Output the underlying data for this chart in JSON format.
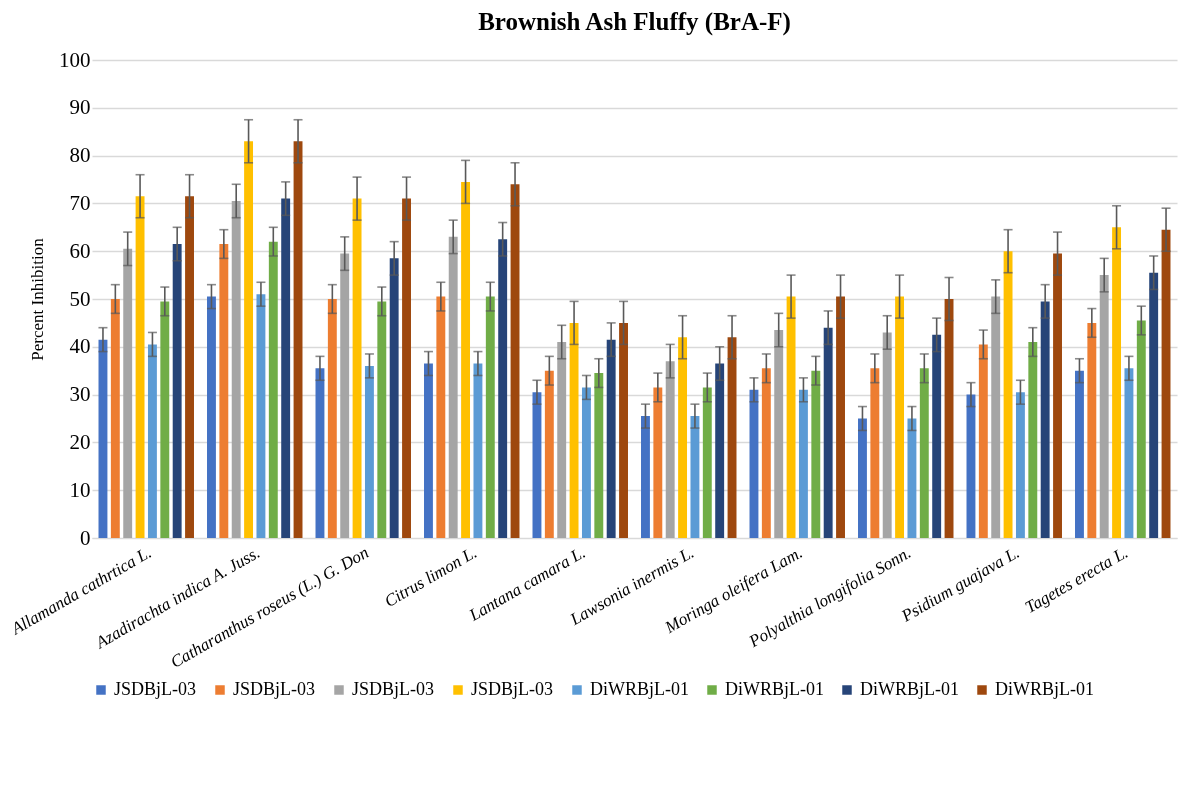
{
  "chart_data": {
    "type": "bar",
    "title": "Brownish Ash Fluffy (BrA-F)",
    "ylabel": "Percent Inhibition",
    "categories": [
      "Allamanda cathrtica L.",
      "Azadirachta indica A. Juss.",
      "Catharanthus roseus (L.) G. Don",
      "Citrus limon L.",
      "Lantana camara L.",
      "Lawsonia inermis L.",
      "Moringa oleifera Lam.",
      "Polyalthia longifolia Sonn.",
      "Psidium guajava L.",
      "Tagetes erecta L."
    ],
    "ylim": [
      0,
      100
    ],
    "yticks": [
      0,
      10,
      20,
      30,
      40,
      50,
      60,
      70,
      80,
      90,
      100
    ],
    "grid": "y",
    "legend": "bottom",
    "series": [
      {
        "name": "JSDBjL-03",
        "color": "#4472c4",
        "values": [
          41.5,
          50.5,
          35.5,
          36.5,
          30.5,
          25.5,
          31,
          25,
          30,
          35
        ],
        "errors": [
          2.5,
          2.5,
          2.5,
          2.5,
          2.5,
          2.5,
          2.5,
          2.5,
          2.5,
          2.5
        ]
      },
      {
        "name": "JSDBjL-03",
        "color": "#ed7d31",
        "values": [
          50,
          61.5,
          50,
          50.5,
          35,
          31.5,
          35.5,
          35.5,
          40.5,
          45
        ],
        "errors": [
          3,
          3,
          3,
          3,
          3,
          3,
          3,
          3,
          3,
          3
        ]
      },
      {
        "name": "JSDBjL-03",
        "color": "#a5a5a5",
        "values": [
          60.5,
          70.5,
          59.5,
          63,
          41,
          37,
          43.5,
          43,
          50.5,
          55
        ],
        "errors": [
          3.5,
          3.5,
          3.5,
          3.5,
          3.5,
          3.5,
          3.5,
          3.5,
          3.5,
          3.5
        ]
      },
      {
        "name": "JSDBjL-03",
        "color": "#ffc000",
        "values": [
          71.5,
          83,
          71,
          74.5,
          45,
          42,
          50.5,
          50.5,
          60,
          65
        ],
        "errors": [
          4.5,
          4.5,
          4.5,
          4.5,
          4.5,
          4.5,
          4.5,
          4.5,
          4.5,
          4.5
        ]
      },
      {
        "name": "DiWRBjL-01",
        "color": "#5b9bd5",
        "values": [
          40.5,
          51,
          36,
          36.5,
          31.5,
          25.5,
          31,
          25,
          30.5,
          35.5
        ],
        "errors": [
          2.5,
          2.5,
          2.5,
          2.5,
          2.5,
          2.5,
          2.5,
          2.5,
          2.5,
          2.5
        ]
      },
      {
        "name": "DiWRBjL-01",
        "color": "#70ad47",
        "values": [
          49.5,
          62,
          49.5,
          50.5,
          34.5,
          31.5,
          35,
          35.5,
          41,
          45.5
        ],
        "errors": [
          3,
          3,
          3,
          3,
          3,
          3,
          3,
          3,
          3,
          3
        ]
      },
      {
        "name": "DiWRBjL-01",
        "color": "#264478",
        "values": [
          61.5,
          71,
          58.5,
          62.5,
          41.5,
          36.5,
          44,
          42.5,
          49.5,
          55.5
        ],
        "errors": [
          3.5,
          3.5,
          3.5,
          3.5,
          3.5,
          3.5,
          3.5,
          3.5,
          3.5,
          3.5
        ]
      },
      {
        "name": "DiWRBjL-01",
        "color": "#9e480e",
        "values": [
          71.5,
          83,
          71,
          74,
          45,
          42,
          50.5,
          50,
          59.5,
          64.5
        ],
        "errors": [
          4.5,
          4.5,
          4.5,
          4.5,
          4.5,
          4.5,
          4.5,
          4.5,
          4.5,
          4.5
        ]
      }
    ]
  }
}
